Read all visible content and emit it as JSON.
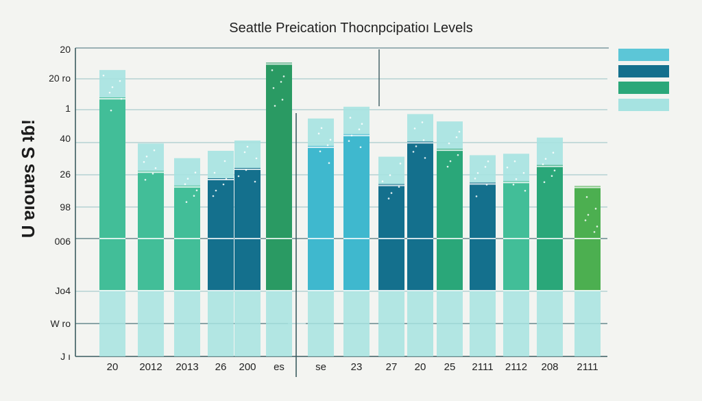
{
  "chart_data": {
    "type": "bar",
    "title": "Seattle Preication Thocnpcipatioı Levels",
    "ylabel": "U ɐıouɐs S ʇɓ!",
    "categories": [
      "20",
      "2012",
      "2013",
      "26",
      "200",
      "es",
      "se",
      "23",
      "27",
      "20",
      "25",
      "2111",
      "2112",
      "208",
      "2111"
    ],
    "y_tick_labels": [
      "20",
      "20 ro",
      "1",
      "40",
      "26",
      "98",
      "006",
      "Jo4",
      "W ro",
      "J ı"
    ],
    "legend": {
      "position": "top-right",
      "entries": [
        {
          "color": "#5cc6d7"
        },
        {
          "color": "#14708d"
        },
        {
          "color": "#2aa779"
        },
        {
          "color": "#a6e3e1"
        }
      ]
    },
    "colors": {
      "light_aqua": "#a6e3e1",
      "cyan": "#3fb8ce",
      "mint": "#42be98",
      "green": "#2aa779",
      "teal": "#14708d",
      "dark_green": "#2a9a63",
      "lime_green": "#4caf50"
    },
    "bars": [
      {
        "category": "20",
        "value": 19.5,
        "color": "mint"
      },
      {
        "category": "2012",
        "value": 14.5,
        "color": "mint"
      },
      {
        "category": "2013",
        "value": 13.5,
        "color": "mint"
      },
      {
        "category": "26",
        "value": 14.0,
        "color": "teal"
      },
      {
        "category": "200",
        "value": 14.7,
        "color": "teal"
      },
      {
        "category": "es",
        "value": 20.0,
        "color": "dark_green"
      },
      {
        "category": "se",
        "value": 16.2,
        "color": "cyan"
      },
      {
        "category": "23",
        "value": 17.0,
        "color": "cyan"
      },
      {
        "category": "27",
        "value": 13.6,
        "color": "teal"
      },
      {
        "category": "20",
        "value": 16.5,
        "color": "teal"
      },
      {
        "category": "25",
        "value": 16.0,
        "color": "green"
      },
      {
        "category": "2111",
        "value": 13.7,
        "color": "teal"
      },
      {
        "category": "2112",
        "value": 13.8,
        "color": "mint"
      },
      {
        "category": "208",
        "value": 14.9,
        "color": "green"
      },
      {
        "category": "2111",
        "value": 11.6,
        "color": "lime_green"
      }
    ],
    "ylim": [
      0,
      21
    ],
    "grid": true
  }
}
